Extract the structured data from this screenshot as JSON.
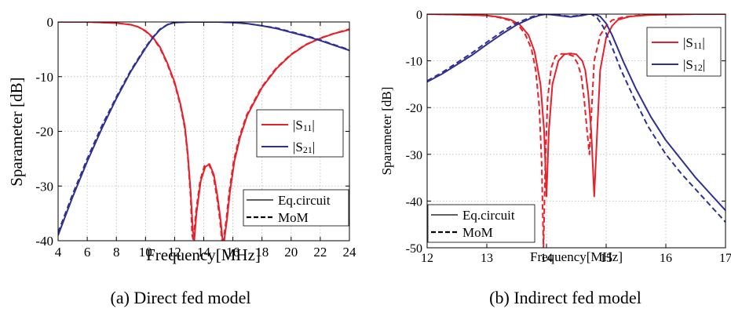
{
  "chart_data": [
    {
      "type": "line",
      "caption": "(a)  Direct fed model",
      "xlabel": "Frequency[MHz]",
      "ylabel": "Sparameter [dB]",
      "xlim": [
        4,
        24
      ],
      "ylim": [
        -40,
        0
      ],
      "xticks": [
        4,
        6,
        8,
        10,
        12,
        14,
        16,
        18,
        20,
        22,
        24
      ],
      "yticks": [
        0,
        -10,
        -20,
        -30,
        -40
      ],
      "grid": true,
      "legend_series": {
        "position": "middle-right",
        "entries": [
          {
            "label": "|S",
            "sub": "11",
            "tail": "|",
            "color": "#e8202a"
          },
          {
            "label": "|S",
            "sub": "21",
            "tail": "|",
            "color": "#2e3192"
          }
        ]
      },
      "legend_style": {
        "position": "lower-right",
        "entries": [
          {
            "label": "Eq.circuit",
            "dash": "solid"
          },
          {
            "label": "MoM",
            "dash": "dashed"
          }
        ]
      },
      "series": [
        {
          "name": "|S11| Eq.circuit",
          "color": "#e8202a",
          "dash": "solid",
          "x": [
            4,
            6,
            8,
            9,
            9.5,
            10,
            10.5,
            11,
            11.5,
            12,
            12.4,
            12.7,
            12.9,
            13.1,
            13.25,
            13.35,
            13.5,
            13.8,
            14.1,
            14.4,
            14.7,
            14.95,
            15.15,
            15.3,
            15.4,
            15.6,
            15.8,
            16.1,
            16.5,
            17,
            18,
            19,
            20,
            21,
            22,
            23,
            24
          ],
          "y": [
            0,
            0,
            -0.2,
            -0.5,
            -0.9,
            -1.6,
            -2.8,
            -4.6,
            -7.5,
            -11,
            -15,
            -19,
            -24,
            -31,
            -38,
            -40,
            -35,
            -29,
            -26.5,
            -26,
            -28,
            -32,
            -36,
            -40,
            -40,
            -36,
            -31,
            -25.5,
            -21,
            -17,
            -12,
            -8.5,
            -6,
            -4.2,
            -3,
            -2.1,
            -1.4
          ]
        },
        {
          "name": "|S11| MoM",
          "color": "#e8202a",
          "dash": "dashed",
          "x": [
            4,
            6,
            8,
            9,
            9.5,
            10,
            10.5,
            11,
            11.5,
            12,
            12.4,
            12.7,
            12.9,
            13.1,
            13.2,
            13.3,
            13.45,
            13.75,
            14.05,
            14.35,
            14.65,
            14.9,
            15.1,
            15.25,
            15.35,
            15.55,
            15.75,
            16.05,
            16.45,
            16.95,
            17.95,
            18.95,
            19.95,
            20.95,
            21.95,
            22.95,
            24
          ],
          "y": [
            0,
            0,
            -0.2,
            -0.5,
            -0.9,
            -1.7,
            -2.9,
            -4.8,
            -7.7,
            -11.3,
            -15.3,
            -19.5,
            -24.5,
            -32,
            -39,
            -40,
            -35,
            -29,
            -26.3,
            -26,
            -28,
            -32,
            -36,
            -40,
            -40,
            -36,
            -31,
            -25.5,
            -21,
            -17,
            -12,
            -8.5,
            -6,
            -4.2,
            -3,
            -2.1,
            -1.3
          ]
        },
        {
          "name": "|S21| Eq.circuit",
          "color": "#2e3192",
          "dash": "solid",
          "x": [
            4,
            5,
            6,
            7,
            8,
            9,
            10,
            10.5,
            11,
            11.5,
            12,
            13,
            14,
            15,
            16,
            17,
            18,
            19,
            20,
            21,
            22,
            23,
            24
          ],
          "y": [
            -39,
            -32,
            -25.5,
            -19.5,
            -14,
            -9,
            -4.8,
            -2.9,
            -1.4,
            -0.5,
            -0.1,
            0,
            0,
            0,
            -0.1,
            -0.3,
            -0.7,
            -1.2,
            -1.9,
            -2.6,
            -3.4,
            -4.3,
            -5.2
          ]
        },
        {
          "name": "|S21| MoM",
          "color": "#2e3192",
          "dash": "dashed",
          "x": [
            4,
            5,
            6,
            7,
            8,
            9,
            10,
            10.5,
            11,
            11.5,
            12,
            13,
            14,
            15,
            16,
            17,
            18,
            19,
            20,
            21,
            22,
            23,
            24
          ],
          "y": [
            -38.5,
            -31.5,
            -25,
            -19,
            -13.7,
            -8.8,
            -4.6,
            -2.8,
            -1.3,
            -0.5,
            -0.1,
            0,
            0,
            0,
            -0.1,
            -0.3,
            -0.7,
            -1.1,
            -1.8,
            -2.5,
            -3.3,
            -4.2,
            -5.1
          ]
        }
      ]
    },
    {
      "type": "line",
      "caption": "(b)  Indirect fed model",
      "xlabel": "Frequency[MHz]",
      "ylabel": "Sparameter  [dB]",
      "xlim": [
        12,
        17
      ],
      "ylim": [
        -50,
        0
      ],
      "xticks": [
        12,
        13,
        14,
        15,
        16,
        17
      ],
      "yticks": [
        0,
        -10,
        -20,
        -30,
        -40,
        -50
      ],
      "grid": true,
      "legend_series": {
        "position": "top-right",
        "entries": [
          {
            "label": "|S",
            "sub": "11",
            "tail": "|",
            "color": "#e8202a"
          },
          {
            "label": "|S",
            "sub": "12",
            "tail": "|",
            "color": "#2e3192"
          }
        ]
      },
      "legend_style": {
        "position": "lower-left",
        "entries": [
          {
            "label": "Eq.circuit",
            "dash": "solid"
          },
          {
            "label": "MoM",
            "dash": "dashed"
          }
        ]
      },
      "series": [
        {
          "name": "|S11| Eq.circuit",
          "color": "#e8202a",
          "dash": "solid",
          "x": [
            12,
            12.5,
            13,
            13.2,
            13.4,
            13.55,
            13.7,
            13.8,
            13.9,
            13.96,
            14.0,
            14.04,
            14.1,
            14.2,
            14.3,
            14.4,
            14.5,
            14.6,
            14.65,
            14.7,
            14.75,
            14.8,
            14.85,
            14.9,
            15.0,
            15.1,
            15.2,
            15.4,
            15.7,
            16,
            16.5,
            17
          ],
          "y": [
            0,
            -0.1,
            -0.3,
            -0.6,
            -1.2,
            -2.2,
            -4.5,
            -8,
            -15,
            -25,
            -39,
            -25,
            -15,
            -10,
            -8.6,
            -8.4,
            -8.6,
            -10,
            -12,
            -17,
            -25,
            -39,
            -25,
            -12,
            -5,
            -2.5,
            -1.2,
            -0.5,
            -0.2,
            -0.1,
            0,
            0
          ]
        },
        {
          "name": "|S11| MoM",
          "color": "#e8202a",
          "dash": "dashed",
          "x": [
            12,
            12.5,
            13,
            13.2,
            13.4,
            13.55,
            13.65,
            13.75,
            13.82,
            13.88,
            13.92,
            13.95,
            13.98,
            14.02,
            14.08,
            14.15,
            14.25,
            14.35,
            14.45,
            14.52,
            14.58,
            14.63,
            14.68,
            14.72,
            14.75,
            14.8,
            14.9,
            15.0,
            15.1,
            15.3,
            15.6,
            16,
            16.5,
            17
          ],
          "y": [
            0,
            -0.1,
            -0.3,
            -0.7,
            -1.4,
            -2.7,
            -4.5,
            -7.5,
            -12,
            -20,
            -32,
            -50,
            -32,
            -18,
            -11.5,
            -9,
            -8.5,
            -8.5,
            -9,
            -10.5,
            -13,
            -18,
            -25,
            -30,
            -22,
            -10,
            -4.5,
            -2.5,
            -1.3,
            -0.6,
            -0.2,
            -0.1,
            0,
            0
          ]
        },
        {
          "name": "|S12| Eq.circuit",
          "color": "#2e3192",
          "dash": "solid",
          "x": [
            12,
            12.25,
            12.5,
            12.75,
            13,
            13.25,
            13.5,
            13.75,
            13.9,
            14.0,
            14.2,
            14.4,
            14.6,
            14.7,
            14.8,
            14.9,
            15.0,
            15.1,
            15.2,
            15.3,
            15.5,
            15.75,
            16,
            16.25,
            16.5,
            16.75,
            17
          ],
          "y": [
            -14.5,
            -12.8,
            -10.8,
            -8.8,
            -6.5,
            -4.3,
            -2.3,
            -0.8,
            -0.2,
            0,
            -0.3,
            -0.6,
            -0.3,
            0,
            0,
            -0.5,
            -2,
            -4.5,
            -7.5,
            -10.5,
            -16,
            -22,
            -27,
            -31,
            -35,
            -38.5,
            -42
          ]
        },
        {
          "name": "|S12| MoM",
          "color": "#2e3192",
          "dash": "dashed",
          "x": [
            12,
            12.25,
            12.5,
            12.75,
            13,
            13.25,
            13.5,
            13.75,
            13.88,
            13.98,
            14.2,
            14.4,
            14.6,
            14.65,
            14.75,
            14.85,
            14.95,
            15.05,
            15.15,
            15.25,
            15.45,
            15.7,
            16,
            16.25,
            16.5,
            16.75,
            17
          ],
          "y": [
            -14.3,
            -12.5,
            -10.4,
            -8.3,
            -6,
            -3.8,
            -1.9,
            -0.6,
            -0.1,
            0,
            -0.2,
            -0.5,
            -0.2,
            0,
            0,
            -0.8,
            -2.7,
            -5.5,
            -8.7,
            -12,
            -17.5,
            -24,
            -30,
            -34,
            -37.5,
            -41,
            -44.5
          ]
        }
      ]
    }
  ]
}
